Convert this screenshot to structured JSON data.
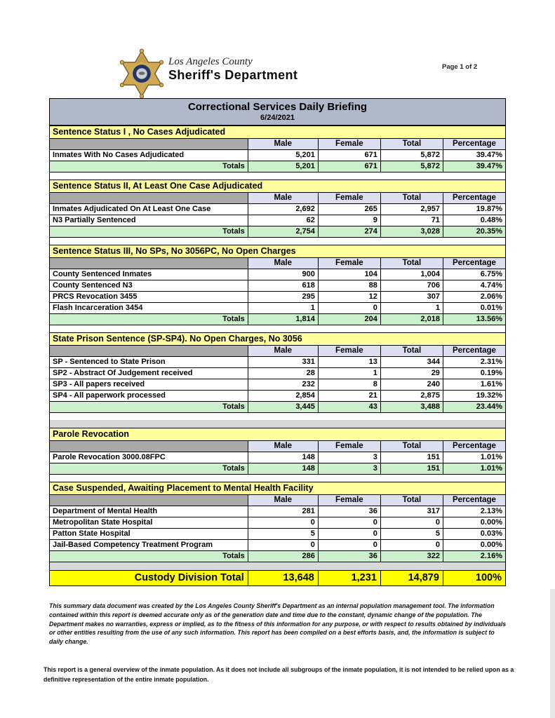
{
  "page_label": "Page 1 of 2",
  "brand": {
    "county": "Los Angeles County",
    "department": "Sheriff's Department",
    "logo": "sheriff-star-badge"
  },
  "title": {
    "heading": "Correctional Services Daily Briefing",
    "date": "6/24/2021"
  },
  "colors": {
    "title_bar": "#aeb9c9",
    "section_header": "#ffff9e",
    "column_header": "#dcdfef",
    "header_stub": "#a9a9a9",
    "totals_row": "#ccf0cc",
    "grand_total_row": "#ffff00",
    "gap_gray": "#d9d9d9",
    "border": "#000000"
  },
  "table": {
    "columns": [
      "Male",
      "Female",
      "Total",
      "Percentage"
    ],
    "column_widths": [
      "43.5%",
      "15.4%",
      "13.7%",
      "13.7%",
      "13.7%"
    ],
    "totals_label": "Totals",
    "sections": [
      {
        "title": "Sentence Status I , No Cases Adjudicated",
        "rows": [
          [
            "Inmates With No Cases Adjudicated",
            "5,201",
            "671",
            "5,872",
            "39.47%"
          ]
        ],
        "totals": [
          "5,201",
          "671",
          "5,872",
          "39.47%"
        ],
        "gaps_after": [
          "white"
        ]
      },
      {
        "title": "Sentence Status II, At Least One Case Adjudicated",
        "rows": [
          [
            "Inmates Adjudicated On At Least One Case",
            "2,692",
            "265",
            "2,957",
            "19.87%"
          ],
          [
            "N3 Partially Sentenced",
            "62",
            "9",
            "71",
            "0.48%"
          ]
        ],
        "totals": [
          "2,754",
          "274",
          "3,028",
          "20.35%"
        ],
        "gaps_after": [
          "white"
        ]
      },
      {
        "title": "Sentence Status III, No SPs, No 3056PC, No Open Charges",
        "rows": [
          [
            "County Sentenced Inmates",
            "900",
            "104",
            "1,004",
            "6.75%"
          ],
          [
            "County Sentenced N3",
            "618",
            "88",
            "706",
            "4.74%"
          ],
          [
            "PRCS Revocation 3455",
            "295",
            "12",
            "307",
            "2.06%"
          ],
          [
            "Flash Incarceration 3454",
            "1",
            "0",
            "1",
            "0.01%"
          ]
        ],
        "totals": [
          "1,814",
          "204",
          "2,018",
          "13.56%"
        ],
        "gaps_after": [
          "white"
        ]
      },
      {
        "title": "State Prison Sentence (SP-SP4). No Open Charges, No 3056",
        "rows": [
          [
            "SP - Sentenced to State Prison",
            "331",
            "13",
            "344",
            "2.31%"
          ],
          [
            "SP2 - Abstract Of Judgement received",
            "28",
            "1",
            "29",
            "0.19%"
          ],
          [
            "SP3 - All papers received",
            "232",
            "8",
            "240",
            "1.61%"
          ],
          [
            "SP4 - All paperwork processed",
            "2,854",
            "21",
            "2,875",
            "19.32%"
          ]
        ],
        "totals": [
          "3,445",
          "43",
          "3,488",
          "23.44%"
        ],
        "gaps_after": [
          "white",
          "gray"
        ]
      },
      {
        "title": "Parole Revocation",
        "rows": [
          [
            "Parole Revocation 3000.08FPC",
            "148",
            "3",
            "151",
            "1.01%"
          ]
        ],
        "totals": [
          "148",
          "3",
          "151",
          "1.01%"
        ],
        "gaps_after": [
          "white"
        ]
      },
      {
        "title": "Case Suspended, Awaiting Placement to Mental Health Facility",
        "rows": [
          [
            "Department of Mental Health",
            "281",
            "36",
            "317",
            "2.13%"
          ],
          [
            "Metropolitan State Hospital",
            "0",
            "0",
            "0",
            "0.00%"
          ],
          [
            "Patton State Hospital",
            "5",
            "0",
            "5",
            "0.03%"
          ],
          [
            "Jail-Based Competency Treatment Program",
            "0",
            "0",
            "0",
            "0.00%"
          ]
        ],
        "totals": [
          "286",
          "36",
          "322",
          "2.16%"
        ],
        "gaps_after": [
          "gray"
        ]
      }
    ],
    "grand_total": {
      "label": "Custody Division Total",
      "values": [
        "13,648",
        "1,231",
        "14,879",
        "100%"
      ]
    }
  },
  "footers": {
    "disclaimer": "This summary data document was created by the Los Angeles County Sheriff's Department as an internal population management tool.  The information contained within this report is deemed accurate only as of the generation date and time due to the constant, dynamic change of the population.  The Department makes no warranties, express or implied, as to the fitness of this information for any purpose, or with respect to results obtained by individuals or other entities resulting from the use of any such information.  This report has been compiled on a best efforts basis, and, the information is subject to daily change.",
    "overview": "This report is a general overview of the inmate population.  As it does not include all subgroups of the inmate population, it is not intended to be relied upon as a definitive representation of the entire inmate population."
  }
}
